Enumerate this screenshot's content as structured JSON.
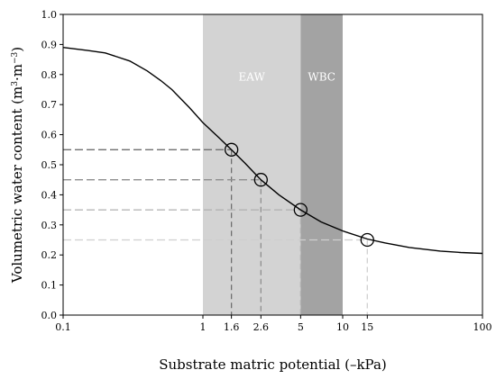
{
  "chart_data": {
    "type": "line",
    "xlabel": "Substrate matric potential (–kPa)",
    "ylabel_main": "Volumetric water content (m",
    "ylabel_sup1": "3",
    "ylabel_mid": "·m",
    "ylabel_sup2": "−3",
    "ylabel_end": ")",
    "x_scale": "log",
    "xlim": [
      0.1,
      100
    ],
    "ylim": [
      0.0,
      1.0
    ],
    "x_ticks": [
      0.1,
      1,
      1.6,
      2.6,
      5,
      10,
      15,
      100
    ],
    "x_tick_labels": [
      "0.1",
      "1",
      "1.6",
      "2.6",
      "5",
      "10",
      "15",
      "100"
    ],
    "y_ticks": [
      0.0,
      0.1,
      0.2,
      0.3,
      0.4,
      0.5,
      0.6,
      0.7,
      0.8,
      0.9,
      1.0
    ],
    "y_tick_labels": [
      "0.0",
      "0.1",
      "0.2",
      "0.3",
      "0.4",
      "0.5",
      "0.6",
      "0.7",
      "0.8",
      "0.9",
      "1.0"
    ],
    "grid": false,
    "curve": {
      "x": [
        0.1,
        0.15,
        0.2,
        0.3,
        0.4,
        0.5,
        0.6,
        0.8,
        1.0,
        1.3,
        1.6,
        2.0,
        2.6,
        3.5,
        5.0,
        7.0,
        10,
        15,
        20,
        30,
        50,
        70,
        100
      ],
      "y": [
        0.89,
        0.88,
        0.872,
        0.845,
        0.812,
        0.78,
        0.75,
        0.69,
        0.64,
        0.59,
        0.55,
        0.505,
        0.45,
        0.4,
        0.35,
        0.31,
        0.28,
        0.253,
        0.24,
        0.225,
        0.213,
        0.208,
        0.205
      ]
    },
    "points": [
      {
        "x": 1.6,
        "y": 0.55
      },
      {
        "x": 2.6,
        "y": 0.45
      },
      {
        "x": 5,
        "y": 0.35
      },
      {
        "x": 15,
        "y": 0.25
      }
    ],
    "guide_line_colors": [
      "#6f6f6f",
      "#8f8f8f",
      "#b0b0b0",
      "#cfcfcf"
    ],
    "bands": [
      {
        "label": "EAW",
        "x_from": 1,
        "x_to": 5,
        "color": "#d3d3d3"
      },
      {
        "label": "WBC",
        "x_from": 5,
        "x_to": 10,
        "color": "#a3a3a3"
      }
    ]
  }
}
